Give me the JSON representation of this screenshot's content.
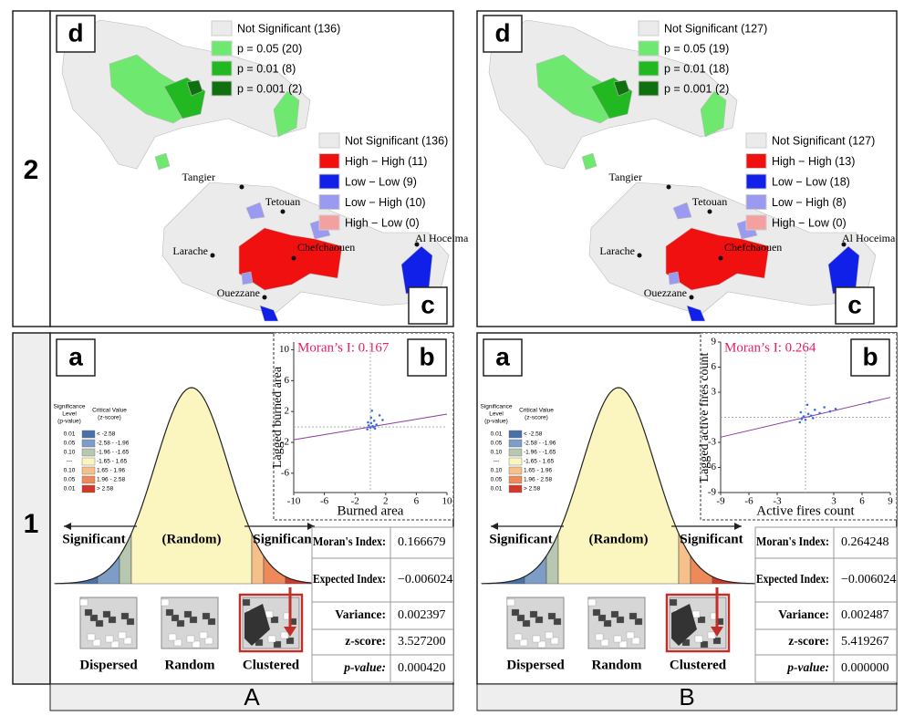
{
  "row_labels": [
    "2",
    "1"
  ],
  "panels": [
    {
      "column_label": "A",
      "map_d": {
        "tag": "d",
        "legend": [
          {
            "label": "Not Significant (136)",
            "color": "#ebebeb"
          },
          {
            "label": "p = 0.05 (20)",
            "color": "#6ee86e"
          },
          {
            "label": "p = 0.01 (8)",
            "color": "#22b822"
          },
          {
            "label": "p = 0.001 (2)",
            "color": "#107010"
          }
        ]
      },
      "map_c": {
        "tag": "c",
        "legend": [
          {
            "label": "Not Significant (136)",
            "color": "#ebebeb"
          },
          {
            "label": "High − High (11)",
            "color": "#f01010"
          },
          {
            "label": "Low − Low (9)",
            "color": "#1020e8"
          },
          {
            "label": "Low − High (10)",
            "color": "#9a9af0"
          },
          {
            "label": "High − Low (0)",
            "color": "#f4a0a0"
          }
        ],
        "cities": [
          "Tangier",
          "Tetouan",
          "Larache",
          "Chefchaouen",
          "Al Hoceima",
          "Ouezzane"
        ]
      },
      "tag_a": "a",
      "tag_b": "b",
      "bell": {
        "level_header": [
          "Significance",
          "Level",
          "(p-value)"
        ],
        "critical_header": [
          "Critical Value",
          "(z-score)"
        ],
        "rows": [
          {
            "level": "0.01",
            "critical": "< -2.58",
            "color": "#4a70a8"
          },
          {
            "level": "0.05",
            "critical": "-2.58 - -1.96",
            "color": "#7d9dc6"
          },
          {
            "level": "0.10",
            "critical": "-1.96 - -1.65",
            "color": "#b8c8b0"
          },
          {
            "level": "---",
            "critical": "-1.65 - 1.65",
            "color": "#fbf6c0"
          },
          {
            "level": "0.10",
            "critical": "1.65 - 1.96",
            "color": "#f6c08a"
          },
          {
            "level": "0.05",
            "critical": "1.96 - 2.58",
            "color": "#ee8a5a"
          },
          {
            "level": "0.01",
            "critical": "> 2.58",
            "color": "#cf3a2a"
          }
        ],
        "labels": [
          "Significant",
          "(Random)",
          "Significant"
        ],
        "patterns": [
          "Dispersed",
          "Random",
          "Clustered"
        ]
      },
      "scatter": {
        "type": "scatter",
        "annotation": "Moran’s I: 0.167",
        "xlabel": "Burned area",
        "ylabel": "Lagged burned area",
        "xlim": [
          -10,
          10
        ],
        "ylim": [
          -8.5,
          11
        ],
        "xticks": [
          -10,
          -6,
          -2,
          2,
          6,
          10
        ],
        "yticks": [
          -6,
          -2,
          2,
          6,
          10
        ],
        "x": [
          -0.4,
          -0.2,
          0,
          0.1,
          0.3,
          0.5,
          0.8,
          1.2,
          -0.3,
          0.2,
          0.6,
          1.6,
          0.1,
          0.4
        ],
        "y": [
          -0.3,
          0.2,
          -0.1,
          0.5,
          0.1,
          0.8,
          0.3,
          1.5,
          0.6,
          2.1,
          -0.2,
          0.9,
          1.2,
          0.0
        ]
      },
      "table": [
        {
          "label": "Moran's Index:",
          "value": "0.166679"
        },
        {
          "label": "Expected Index:",
          "value": "−0.006024"
        },
        {
          "label": "Variance:",
          "value": "0.002397"
        },
        {
          "label": "z-score:",
          "value": "3.527200"
        },
        {
          "label": "p-value:",
          "value": "0.000420"
        }
      ]
    },
    {
      "column_label": "B",
      "map_d": {
        "tag": "d",
        "legend": [
          {
            "label": "Not Significant (127)",
            "color": "#ebebeb"
          },
          {
            "label": "p = 0.05 (19)",
            "color": "#6ee86e"
          },
          {
            "label": "p = 0.01 (18)",
            "color": "#22b822"
          },
          {
            "label": "p = 0.001 (2)",
            "color": "#107010"
          }
        ]
      },
      "map_c": {
        "tag": "c",
        "legend": [
          {
            "label": "Not Significant (127)",
            "color": "#ebebeb"
          },
          {
            "label": "High − High (13)",
            "color": "#f01010"
          },
          {
            "label": "Low − Low (18)",
            "color": "#1020e8"
          },
          {
            "label": "Low − High (8)",
            "color": "#9a9af0"
          },
          {
            "label": "High − Low (0)",
            "color": "#f4a0a0"
          }
        ],
        "cities": [
          "Tangier",
          "Tetouan",
          "Larache",
          "Chefchaouen",
          "Al Hoceima",
          "Ouezzane"
        ]
      },
      "tag_a": "a",
      "tag_b": "b",
      "bell": {
        "level_header": [
          "Significance",
          "Level",
          "(p-value)"
        ],
        "critical_header": [
          "Critical Value",
          "(z-score)"
        ],
        "rows": [
          {
            "level": "0.01",
            "critical": "< -2.58",
            "color": "#4a70a8"
          },
          {
            "level": "0.05",
            "critical": "-2.58 - -1.96",
            "color": "#7d9dc6"
          },
          {
            "level": "0.10",
            "critical": "-1.96 - -1.65",
            "color": "#b8c8b0"
          },
          {
            "level": "---",
            "critical": "-1.65 - 1.65",
            "color": "#fbf6c0"
          },
          {
            "level": "0.10",
            "critical": "1.65 - 1.96",
            "color": "#f6c08a"
          },
          {
            "level": "0.05",
            "critical": "1.96 - 2.58",
            "color": "#ee8a5a"
          },
          {
            "level": "0.01",
            "critical": "> 2.58",
            "color": "#cf3a2a"
          }
        ],
        "labels": [
          "Significant",
          "(Random)",
          "Significant"
        ],
        "patterns": [
          "Dispersed",
          "Random",
          "Clustered"
        ]
      },
      "scatter": {
        "type": "scatter",
        "annotation": "Moran’s I: 0.264",
        "xlabel": "Active fires count",
        "ylabel": "Lagged active fires count",
        "xlim": [
          -9,
          9
        ],
        "ylim": [
          -9,
          9
        ],
        "xticks": [
          -9,
          -6,
          -3,
          3,
          6,
          9
        ],
        "yticks": [
          -9,
          -6,
          -3,
          3,
          6,
          9
        ],
        "x": [
          -0.6,
          -0.4,
          -0.2,
          0,
          0.3,
          0.6,
          1.0,
          1.5,
          2.0,
          2.6,
          3.2,
          -0.5,
          0.2,
          0.8,
          6.8
        ],
        "y": [
          -0.6,
          -0.2,
          0.1,
          -0.3,
          0.4,
          0.2,
          0.9,
          0.5,
          1.2,
          0.7,
          1.0,
          0.6,
          1.5,
          -0.1,
          1.8
        ]
      },
      "table": [
        {
          "label": "Moran's Index:",
          "value": "0.264248"
        },
        {
          "label": "Expected Index:",
          "value": "−0.006024"
        },
        {
          "label": "Variance:",
          "value": "0.002487"
        },
        {
          "label": "z-score:",
          "value": "5.419267"
        },
        {
          "label": "p-value:",
          "value": "0.000000"
        }
      ]
    }
  ]
}
